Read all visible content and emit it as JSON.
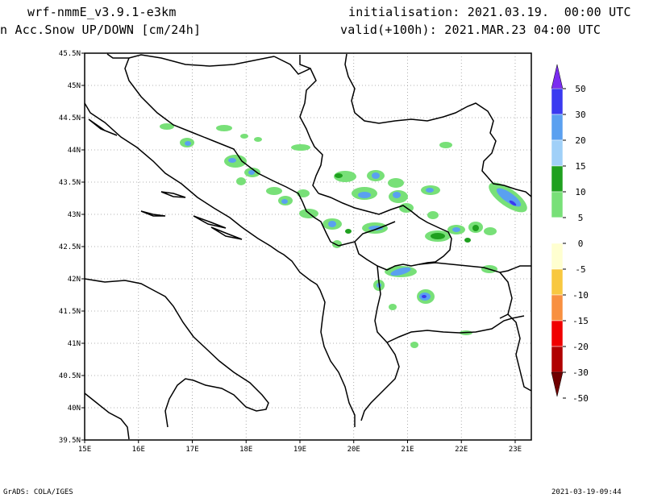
{
  "header": {
    "model": "wrf-nmmE_v3.9.1-e3km",
    "field": "n Acc.Snow UP/DOWN [cm/24h]",
    "init": "initialisation: 2021.03.19.  00:00 UTC",
    "valid": "valid(+100h): 2021.MAR.23 04:00 UTC"
  },
  "map": {
    "lat_labels": [
      "45.5N",
      "45N",
      "44.5N",
      "44N",
      "43.5N",
      "43N",
      "42.5N",
      "42N",
      "41.5N",
      "41N",
      "40.5N",
      "40N",
      "39.5N"
    ],
    "lon_labels": [
      "15E",
      "16E",
      "17E",
      "18E",
      "19E",
      "20E",
      "21E",
      "22E",
      "23E"
    ],
    "extent": {
      "lon": [
        15,
        23.3
      ],
      "lat": [
        39.5,
        45.5
      ]
    }
  },
  "legend": {
    "labels": [
      "50",
      "30",
      "20",
      "15",
      "10",
      "5",
      "0",
      "-5",
      "-10",
      "-15",
      "-20",
      "-30",
      "-50"
    ],
    "colors": [
      "#7a2cf0",
      "#3a3af0",
      "#5aa0f0",
      "#a0d0f8",
      "#1fa01f",
      "#78e078",
      "#ffffff",
      "#ffffd0",
      "#f8c840",
      "#f89040",
      "#f00000",
      "#b00000",
      "#700000"
    ]
  },
  "footer": {
    "left": "GrADS: COLA/IGES",
    "right": "2021-03-19-09:44"
  }
}
